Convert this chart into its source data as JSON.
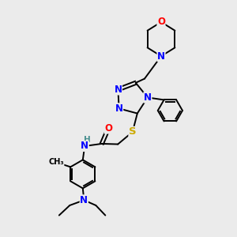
{
  "bg_color": "#ebebeb",
  "atom_colors": {
    "C": "#000000",
    "N": "#0000ff",
    "O": "#ff0000",
    "S": "#ccaa00",
    "H": "#4a9090"
  },
  "bond_color": "#000000",
  "bond_width": 1.4,
  "font_size_atom": 8.5,
  "fig_width": 3.0,
  "fig_height": 3.0
}
